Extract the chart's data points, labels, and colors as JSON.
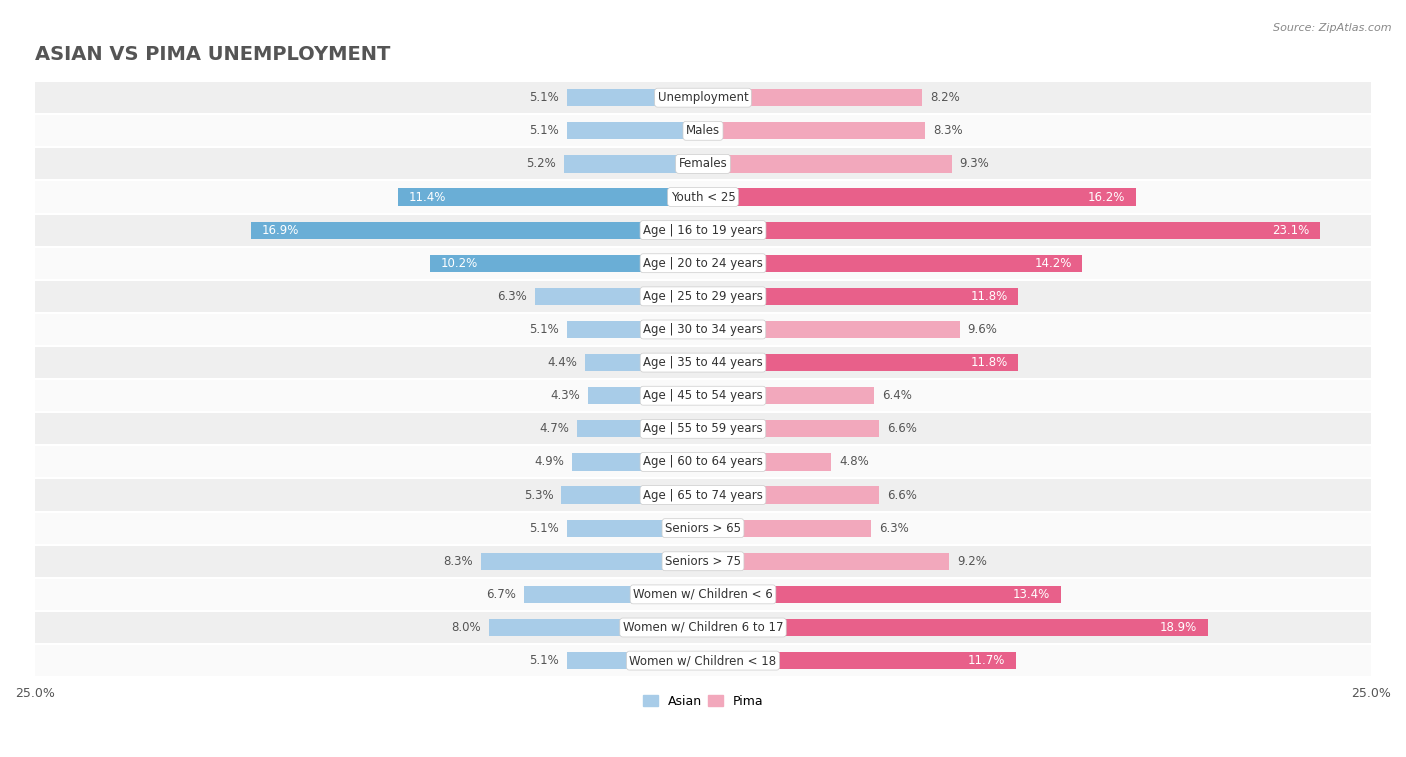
{
  "title": "ASIAN VS PIMA UNEMPLOYMENT",
  "source": "Source: ZipAtlas.com",
  "categories": [
    "Unemployment",
    "Males",
    "Females",
    "Youth < 25",
    "Age | 16 to 19 years",
    "Age | 20 to 24 years",
    "Age | 25 to 29 years",
    "Age | 30 to 34 years",
    "Age | 35 to 44 years",
    "Age | 45 to 54 years",
    "Age | 55 to 59 years",
    "Age | 60 to 64 years",
    "Age | 65 to 74 years",
    "Seniors > 65",
    "Seniors > 75",
    "Women w/ Children < 6",
    "Women w/ Children 6 to 17",
    "Women w/ Children < 18"
  ],
  "asian_values": [
    5.1,
    5.1,
    5.2,
    11.4,
    16.9,
    10.2,
    6.3,
    5.1,
    4.4,
    4.3,
    4.7,
    4.9,
    5.3,
    5.1,
    8.3,
    6.7,
    8.0,
    5.1
  ],
  "pima_values": [
    8.2,
    8.3,
    9.3,
    16.2,
    23.1,
    14.2,
    11.8,
    9.6,
    11.8,
    6.4,
    6.6,
    4.8,
    6.6,
    6.3,
    9.2,
    13.4,
    18.9,
    11.7
  ],
  "asian_color": "#A8CCE8",
  "pima_color": "#F2A8BC",
  "highlight_asian_color": "#6AAED6",
  "highlight_pima_color": "#E8608A",
  "axis_max": 25.0,
  "bar_height": 0.52,
  "bg_color": "#ffffff",
  "row_alt_color": "#efefef",
  "row_base_color": "#fafafa",
  "title_fontsize": 14,
  "label_fontsize": 8.5,
  "value_fontsize": 8.5,
  "legend_fontsize": 9,
  "highlight_threshold": 10.0
}
